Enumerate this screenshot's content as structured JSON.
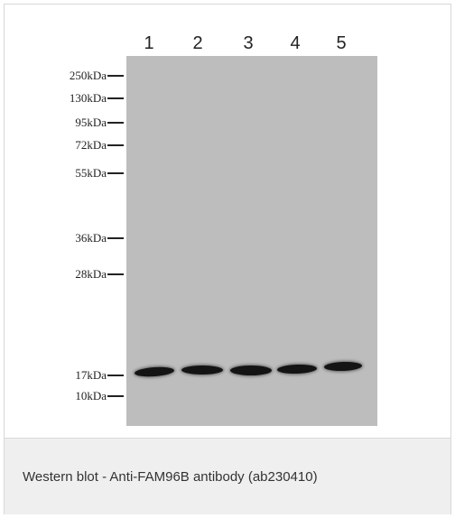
{
  "figure": {
    "lanes": [
      "1",
      "2",
      "3",
      "4",
      "5"
    ],
    "markers": [
      "250kDa",
      "130kDa",
      "95kDa",
      "72kDa",
      "55kDa",
      "36kDa",
      "28kDa",
      "17kDa",
      "10kDa"
    ]
  },
  "caption": "Western blot - Anti-FAM96B antibody (ab230410)",
  "colors": {
    "membrane": "#bdbdbd",
    "band": "#141414",
    "caption_background": "#efefef"
  }
}
